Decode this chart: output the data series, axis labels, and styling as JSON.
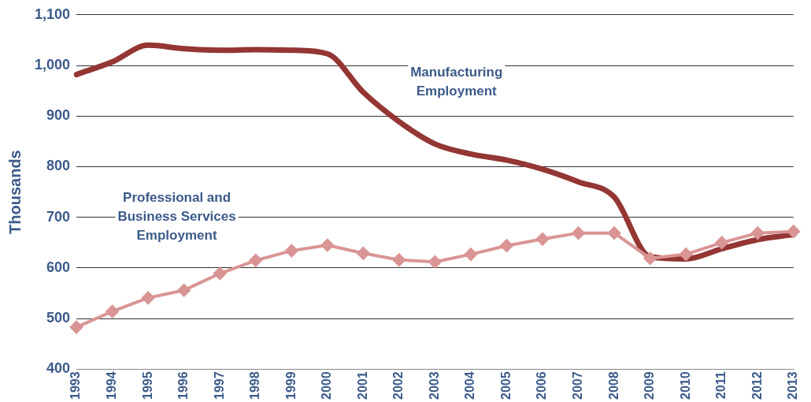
{
  "chart_data": {
    "type": "line",
    "ylabel": "Thousands",
    "categories": [
      "1993",
      "1994",
      "1995",
      "1996",
      "1997",
      "1998",
      "1999",
      "2000",
      "2001",
      "2002",
      "2003",
      "2004",
      "2005",
      "2006",
      "2007",
      "2008",
      "2009",
      "2010",
      "2011",
      "2012",
      "2013"
    ],
    "series": [
      {
        "name": "Manufacturing Employment",
        "color": "#943634",
        "marker": "none",
        "values": [
          982,
          1007,
          1040,
          1033,
          1030,
          1031,
          1030,
          1023,
          947,
          889,
          845,
          825,
          813,
          795,
          770,
          740,
          622,
          618,
          638,
          656,
          666
        ]
      },
      {
        "name": "Professional and Business Services Employment",
        "color": "#d99594",
        "marker": "diamond",
        "values": [
          483,
          514,
          541,
          556,
          589,
          615,
          634,
          645,
          629,
          616,
          612,
          627,
          644,
          657,
          669,
          669,
          619,
          627,
          650,
          669,
          672
        ]
      }
    ],
    "ylim": [
      400,
      1100
    ],
    "yticks": [
      400,
      500,
      600,
      700,
      800,
      900,
      {
        "value": 1000,
        "label": "1,000"
      },
      {
        "value": 1100,
        "label": "1,100"
      }
    ],
    "grid": "y",
    "legend": false
  }
}
